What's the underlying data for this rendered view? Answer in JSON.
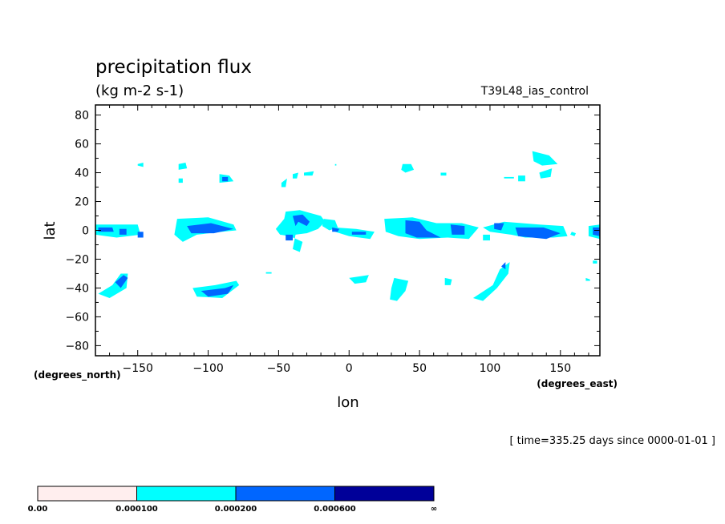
{
  "chart_data": {
    "type": "heatmap",
    "title": "precipitation flux",
    "units": "(kg m-2 s-1)",
    "run_label": "T39L48_ias_control",
    "xlabel": "lon",
    "ylabel": "lat",
    "x_units_label": "(degrees_east)",
    "y_units_label": "(degrees_north)",
    "time_label": "[ time=335.25 days since 0000-01-01 ]",
    "xlim": [
      -180,
      178
    ],
    "ylim": [
      -87,
      87
    ],
    "x_ticks": [
      {
        "v": -150,
        "label": "−150"
      },
      {
        "v": -100,
        "label": "−100"
      },
      {
        "v": -50,
        "label": "−50"
      },
      {
        "v": 0,
        "label": "0"
      },
      {
        "v": 50,
        "label": "50"
      },
      {
        "v": 100,
        "label": "100"
      },
      {
        "v": 150,
        "label": "150"
      }
    ],
    "y_ticks": [
      {
        "v": 80,
        "label": "80"
      },
      {
        "v": 60,
        "label": "60"
      },
      {
        "v": 40,
        "label": "40"
      },
      {
        "v": 20,
        "label": "20"
      },
      {
        "v": 0,
        "label": "0"
      },
      {
        "v": -20,
        "label": "−20"
      },
      {
        "v": -40,
        "label": "−40"
      },
      {
        "v": -60,
        "label": "−60"
      },
      {
        "v": -80,
        "label": "−80"
      }
    ],
    "levels": [
      {
        "label": "0.00",
        "color": "#ffeeee"
      },
      {
        "label": "0.000100",
        "color": "#00ffff"
      },
      {
        "label": "0.000200",
        "color": "#0066ff"
      },
      {
        "label": "0.000600",
        "color": "#000099"
      },
      {
        "label": "∞"
      }
    ],
    "regions": [
      {
        "level": 1,
        "points": [
          [
            -180,
            4
          ],
          [
            -150,
            4
          ],
          [
            -148,
            -3
          ],
          [
            -165,
            -5
          ],
          [
            -180,
            -3
          ]
        ]
      },
      {
        "level": 2,
        "points": [
          [
            -178,
            2
          ],
          [
            -168,
            2
          ],
          [
            -167,
            -1
          ],
          [
            -178,
            -1
          ]
        ]
      },
      {
        "level": 2,
        "points": [
          [
            -163,
            1
          ],
          [
            -158,
            1
          ],
          [
            -158,
            -3
          ],
          [
            -163,
            -3
          ]
        ]
      },
      {
        "level": 2,
        "points": [
          [
            -150,
            -1
          ],
          [
            -146,
            -1
          ],
          [
            -146,
            -5
          ],
          [
            -150,
            -5
          ]
        ]
      },
      {
        "level": 1,
        "points": [
          [
            -150,
            46
          ],
          [
            -146,
            47
          ],
          [
            -146,
            44
          ],
          [
            -150,
            45
          ]
        ]
      },
      {
        "level": 1,
        "points": [
          [
            -121,
            46
          ],
          [
            -116,
            47
          ],
          [
            -115,
            43
          ],
          [
            -121,
            42
          ]
        ]
      },
      {
        "level": 1,
        "points": [
          [
            -121,
            36
          ],
          [
            -118,
            36
          ],
          [
            -118,
            33
          ],
          [
            -121,
            33
          ]
        ]
      },
      {
        "level": 1,
        "points": [
          [
            -92,
            39
          ],
          [
            -85,
            38
          ],
          [
            -82,
            34
          ],
          [
            -92,
            33
          ]
        ]
      },
      {
        "level": 2,
        "points": [
          [
            -90,
            37
          ],
          [
            -86,
            37
          ],
          [
            -86,
            34
          ],
          [
            -90,
            34
          ]
        ]
      },
      {
        "level": 1,
        "points": [
          [
            -122,
            8
          ],
          [
            -100,
            9
          ],
          [
            -82,
            4
          ],
          [
            -80,
            0
          ],
          [
            -90,
            -1
          ],
          [
            -108,
            -3
          ],
          [
            -118,
            -8
          ],
          [
            -124,
            -3
          ]
        ]
      },
      {
        "level": 2,
        "points": [
          [
            -115,
            3
          ],
          [
            -98,
            5
          ],
          [
            -82,
            1
          ],
          [
            -96,
            -2
          ],
          [
            -112,
            -2
          ]
        ]
      },
      {
        "level": 1,
        "points": [
          [
            -178,
            -44
          ],
          [
            -168,
            -38
          ],
          [
            -162,
            -30
          ],
          [
            -157,
            -30
          ],
          [
            -158,
            -40
          ],
          [
            -170,
            -47
          ]
        ]
      },
      {
        "level": 2,
        "points": [
          [
            -166,
            -36
          ],
          [
            -160,
            -31
          ],
          [
            -157,
            -33
          ],
          [
            -162,
            -40
          ]
        ]
      },
      {
        "level": 1,
        "points": [
          [
            -111,
            -40
          ],
          [
            -95,
            -38
          ],
          [
            -80,
            -35
          ],
          [
            -78,
            -38
          ],
          [
            -90,
            -47
          ],
          [
            -108,
            -46
          ]
        ]
      },
      {
        "level": 2,
        "points": [
          [
            -105,
            -42
          ],
          [
            -88,
            -40
          ],
          [
            -82,
            -38
          ],
          [
            -86,
            -44
          ],
          [
            -100,
            -46
          ]
        ]
      },
      {
        "level": 1,
        "points": [
          [
            -48,
            33
          ],
          [
            -44,
            36
          ],
          [
            -45,
            30
          ],
          [
            -48,
            30
          ]
        ]
      },
      {
        "level": 1,
        "points": [
          [
            -40,
            39
          ],
          [
            -36,
            40
          ],
          [
            -37,
            36
          ],
          [
            -40,
            36
          ]
        ]
      },
      {
        "level": 1,
        "points": [
          [
            -32,
            40
          ],
          [
            -25,
            41
          ],
          [
            -26,
            38
          ],
          [
            -32,
            38
          ]
        ]
      },
      {
        "level": 1,
        "points": [
          [
            -45,
            13
          ],
          [
            -35,
            14
          ],
          [
            -20,
            10
          ],
          [
            -17,
            6
          ],
          [
            -22,
            1
          ],
          [
            -30,
            -2
          ],
          [
            -38,
            -3
          ],
          [
            -40,
            -13
          ],
          [
            -35,
            -15
          ],
          [
            -33,
            -8
          ],
          [
            -42,
            -4
          ],
          [
            -49,
            -3
          ],
          [
            -52,
            1
          ],
          [
            -46,
            8
          ]
        ]
      },
      {
        "level": 2,
        "points": [
          [
            -40,
            10
          ],
          [
            -33,
            11
          ],
          [
            -28,
            6
          ],
          [
            -30,
            3
          ],
          [
            -36,
            6
          ],
          [
            -38,
            3
          ]
        ]
      },
      {
        "level": 2,
        "points": [
          [
            -45,
            -3
          ],
          [
            -40,
            -3
          ],
          [
            -40,
            -7
          ],
          [
            -45,
            -7
          ]
        ]
      },
      {
        "level": 1,
        "points": [
          [
            -10,
            46
          ],
          [
            -9,
            46
          ],
          [
            -9,
            45
          ],
          [
            -10,
            45
          ]
        ]
      },
      {
        "level": 1,
        "points": [
          [
            -18,
            8
          ],
          [
            -10,
            7
          ],
          [
            -8,
            2
          ],
          [
            -14,
            0
          ],
          [
            -19,
            3
          ]
        ]
      },
      {
        "level": 1,
        "points": [
          [
            -10,
            2
          ],
          [
            5,
            1
          ],
          [
            18,
            -1
          ],
          [
            15,
            -6
          ],
          [
            0,
            -4
          ],
          [
            -10,
            -1
          ]
        ]
      },
      {
        "level": 2,
        "points": [
          [
            -12,
            2
          ],
          [
            -7,
            1
          ],
          [
            -8,
            -1
          ],
          [
            -12,
            -1
          ]
        ]
      },
      {
        "level": 2,
        "points": [
          [
            2,
            -1
          ],
          [
            12,
            -1
          ],
          [
            12,
            -3
          ],
          [
            2,
            -3
          ]
        ]
      },
      {
        "level": 1,
        "points": [
          [
            0,
            -33
          ],
          [
            14,
            -31
          ],
          [
            12,
            -36
          ],
          [
            4,
            -37
          ]
        ]
      },
      {
        "level": 1,
        "points": [
          [
            38,
            46
          ],
          [
            44,
            46
          ],
          [
            46,
            42
          ],
          [
            40,
            40
          ],
          [
            37,
            42
          ]
        ]
      },
      {
        "level": 1,
        "points": [
          [
            25,
            8
          ],
          [
            45,
            9
          ],
          [
            62,
            5
          ],
          [
            80,
            5
          ],
          [
            92,
            2
          ],
          [
            85,
            -6
          ],
          [
            70,
            -5
          ],
          [
            50,
            -6
          ],
          [
            35,
            -4
          ],
          [
            26,
            -1
          ]
        ]
      },
      {
        "level": 2,
        "points": [
          [
            40,
            7
          ],
          [
            50,
            6
          ],
          [
            55,
            0
          ],
          [
            65,
            -5
          ],
          [
            48,
            -5
          ],
          [
            40,
            -2
          ]
        ]
      },
      {
        "level": 2,
        "points": [
          [
            72,
            4
          ],
          [
            82,
            3
          ],
          [
            82,
            -3
          ],
          [
            73,
            -3
          ]
        ]
      },
      {
        "level": 1,
        "points": [
          [
            32,
            -33
          ],
          [
            42,
            -35
          ],
          [
            40,
            -42
          ],
          [
            34,
            -49
          ],
          [
            29,
            -48
          ],
          [
            30,
            -40
          ]
        ]
      },
      {
        "level": 1,
        "points": [
          [
            68,
            -33
          ],
          [
            73,
            -34
          ],
          [
            72,
            -38
          ],
          [
            68,
            -38
          ]
        ]
      },
      {
        "level": 1,
        "points": [
          [
            65,
            40
          ],
          [
            69,
            40
          ],
          [
            69,
            38
          ],
          [
            65,
            38
          ]
        ]
      },
      {
        "level": 1,
        "points": [
          [
            95,
            2
          ],
          [
            110,
            6
          ],
          [
            135,
            4
          ],
          [
            152,
            3
          ],
          [
            155,
            -4
          ],
          [
            145,
            -5
          ],
          [
            125,
            -5
          ],
          [
            115,
            -3
          ],
          [
            100,
            -1
          ]
        ]
      },
      {
        "level": 2,
        "points": [
          [
            103,
            5
          ],
          [
            110,
            5
          ],
          [
            108,
            0
          ],
          [
            103,
            1
          ]
        ]
      },
      {
        "level": 2,
        "points": [
          [
            118,
            2
          ],
          [
            138,
            2
          ],
          [
            150,
            -2
          ],
          [
            140,
            -6
          ],
          [
            120,
            -4
          ]
        ]
      },
      {
        "level": 1,
        "points": [
          [
            95,
            -3
          ],
          [
            100,
            -3
          ],
          [
            100,
            -7
          ],
          [
            95,
            -7
          ]
        ]
      },
      {
        "level": 1,
        "points": [
          [
            88,
            -47
          ],
          [
            102,
            -38
          ],
          [
            107,
            -27
          ],
          [
            114,
            -22
          ],
          [
            113,
            -30
          ],
          [
            105,
            -40
          ],
          [
            95,
            -49
          ]
        ]
      },
      {
        "level": 2,
        "points": [
          [
            108,
            -25
          ],
          [
            111,
            -22
          ],
          [
            111,
            -27
          ]
        ]
      },
      {
        "level": 1,
        "points": [
          [
            130,
            55
          ],
          [
            142,
            52
          ],
          [
            148,
            46
          ],
          [
            137,
            45
          ],
          [
            131,
            48
          ]
        ]
      },
      {
        "level": 1,
        "points": [
          [
            135,
            40
          ],
          [
            144,
            43
          ],
          [
            143,
            37
          ],
          [
            136,
            36
          ]
        ]
      },
      {
        "level": 1,
        "points": [
          [
            120,
            38
          ],
          [
            125,
            38
          ],
          [
            125,
            34
          ],
          [
            120,
            34
          ]
        ]
      },
      {
        "level": 1,
        "points": [
          [
            110,
            37
          ],
          [
            117,
            37
          ],
          [
            117,
            36
          ],
          [
            110,
            36
          ]
        ]
      },
      {
        "level": 1,
        "points": [
          [
            170,
            3
          ],
          [
            178,
            4
          ],
          [
            178,
            -6
          ],
          [
            170,
            -4
          ]
        ]
      },
      {
        "level": 2,
        "points": [
          [
            173,
            2
          ],
          [
            178,
            2
          ],
          [
            178,
            -4
          ],
          [
            173,
            -3
          ]
        ]
      },
      {
        "level": 1,
        "points": [
          [
            158,
            -1
          ],
          [
            161,
            -2
          ],
          [
            160,
            -4
          ],
          [
            157,
            -3
          ]
        ]
      },
      {
        "level": 1,
        "points": [
          [
            -59,
            -29
          ],
          [
            -55,
            -29
          ],
          [
            -55,
            -30
          ],
          [
            -59,
            -30
          ]
        ]
      },
      {
        "level": 1,
        "points": [
          [
            168,
            -33
          ],
          [
            171,
            -34
          ],
          [
            171,
            -35
          ],
          [
            168,
            -35
          ]
        ]
      },
      {
        "level": 1,
        "points": [
          [
            173,
            -21
          ],
          [
            176,
            -21
          ],
          [
            176,
            -23
          ],
          [
            173,
            -23
          ]
        ]
      }
    ]
  }
}
